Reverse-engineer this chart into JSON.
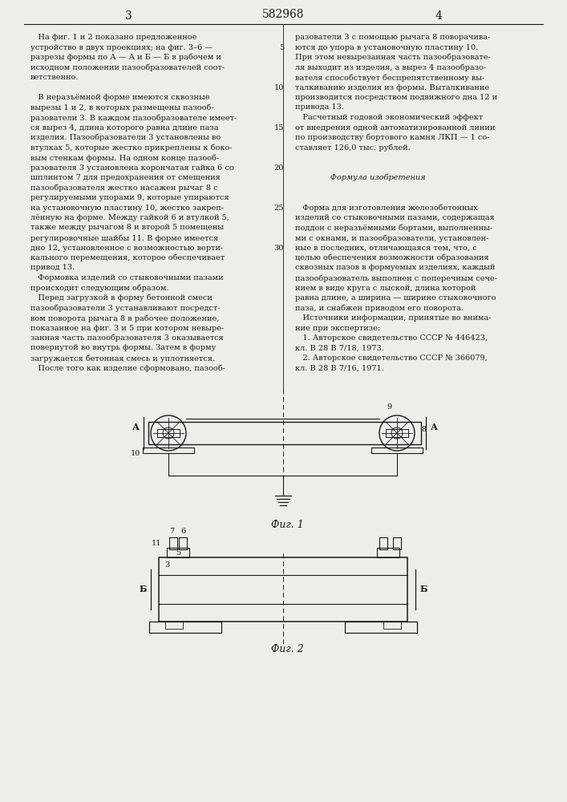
{
  "bg_color": "#f0ede8",
  "patent_number": "582968",
  "page3": "3",
  "page4": "4",
  "lc": "#1a1a1a",
  "tc": "#1a1a1a",
  "col1_lines": [
    "   На фиг. 1 и 2 показано предложенное",
    "устройство в двух проекциях; на фиг. 3–6 —",
    "разрезы формы по А — А и Б — Б в рабочем и",
    "исходном положении пазообразователей соот-",
    "ветственно.",
    "",
    "   В неразъёмной форме имеются сквозные",
    "вырезы 1 и 2, в которых размещены пазооб-",
    "разователи 3. В каждом пазообразователе имеет-",
    "ся вырез 4, длина которого равна длине паза",
    "изделия. Пазообразователи 3 установлены во",
    "втулках 5, которые жестко прикреплены к боко-",
    "вым стенкам формы. На одном конце пазооб-",
    "разователя 3 установлена корончатая гайка 6 со",
    "шплинтом 7 для предохранения от смещения",
    "пазообразователя жестко насажен рычаг 8 с",
    "регулируемыми упорами 9, которые упираются",
    "на установочную пластину 10, жестко закреп-",
    "лённую на форме. Между гайкой 6 и втулкой 5,",
    "также между рычагом 8 и второй 5 помещены",
    "регулировочные шайбы 11. В форме имеется",
    "дно 12, установленное с возможностью верти-",
    "кального перемещения, которое обеспечивает",
    "привод 13.",
    "   Формовка изделий со стыковочными пазами",
    "происходит следующим образом.",
    "   Перед загрузкой в форму бетонной смеси",
    "пазообразователи 3 устанавливают посредст-",
    "вом поворота рычага 8 в рабочее положение,",
    "показанное на фиг. 3 и 5 при котором невыре-",
    "занная часть пазообразователя 3 оказывается",
    "повернутой во внутрь формы. Затем в форму",
    "загружается бетонная смесь и уплотняется.",
    "   После того как изделие сформовано, пазооб-"
  ],
  "col2_lines": [
    "разователи 3 с помощью рычага 8 поворачива-",
    "ются до упора в установочную пластину 10.",
    "При этом невырезанная часть пазообразовате-",
    "ля выходит из изделия, а вырез 4 пазообразо-",
    "вателя способствует беспрепятственному вы-",
    "талкиванию изделия из формы. Выталкивание",
    "производится посредством подвижного дна 12 и",
    "привода 13.",
    "   Расчетный годовой экономический эффект",
    "от внедрения одной автоматизированной линии",
    "по производству бортового камня ЛКП — 1 со-",
    "ставляет 126,0 тыс. рублей.",
    "",
    "",
    "              Формула изобретения",
    "",
    "",
    "   Форма для изготовления железобетонных",
    "изделий со стыковочными пазами, содержащая",
    "поддон с неразъёмными бортами, выполненны-",
    "ми с окнами, и пазообразователи, установлен-",
    "ные в последних, отличающаяся тем, что, с",
    "целью обеспечения возможности образования",
    "сквозных пазов в формуемых изделиях, каждый",
    "пазообразователь выполнен с поперечным сече-",
    "нием в виде круга с лыской, длина которой",
    "равна длине, а ширина — ширине стыковочного",
    "паза, и снабжен приводом его поворота.",
    "   Источники информации, принятые во внима-",
    "ние при экспертизе:",
    "   1. Авторское свидетельство СССР № 446423,",
    "кл. В 28 В 7/18, 1973.",
    "   2. Авторское свидетельство СССР № 366079,",
    "кл. В 28 В 7/16, 1971."
  ],
  "line_numbers_col2": {
    "1": "5",
    "5": "10",
    "9": "15",
    "13": "20",
    "17": "25",
    "21": "30"
  }
}
